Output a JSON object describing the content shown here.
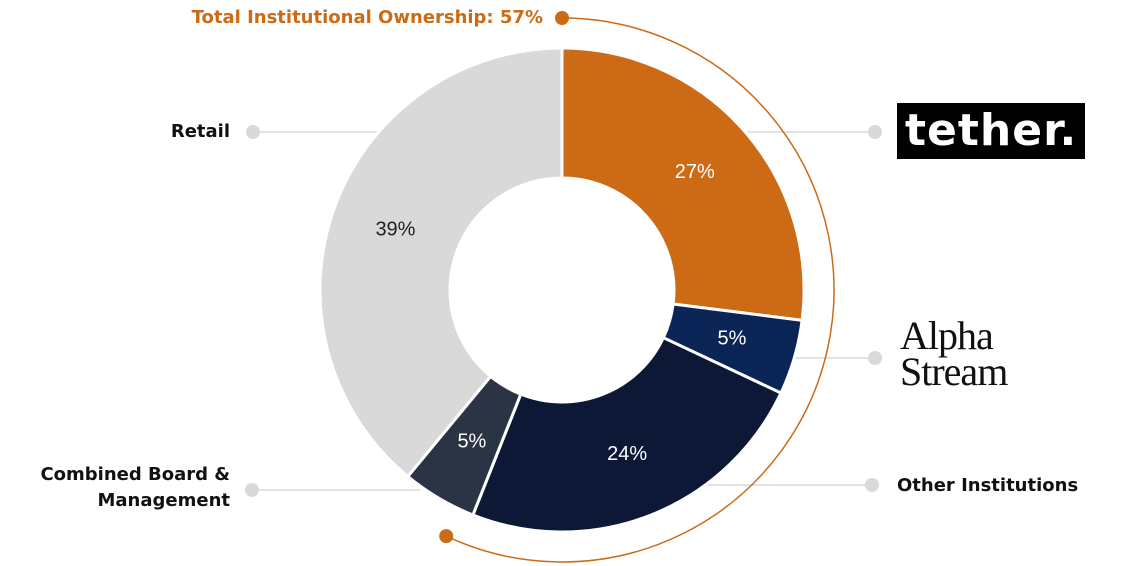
{
  "chart_data": {
    "type": "donut",
    "categories": [
      "tether.",
      "Alpha Stream",
      "Other Institutions",
      "Combined Board & Management",
      "Retail"
    ],
    "values": [
      27,
      5,
      24,
      5,
      39
    ],
    "value_labels": [
      "27%",
      "5%",
      "24%",
      "5%",
      "39%"
    ],
    "colors": [
      "#cc6a15",
      "#0a2556",
      "#0c1836",
      "#2b3444",
      "#d9d9d9"
    ],
    "annotation": {
      "text": "Total Institutional Ownership: 57%",
      "value": 57,
      "color": "#cc6a15"
    }
  }
}
